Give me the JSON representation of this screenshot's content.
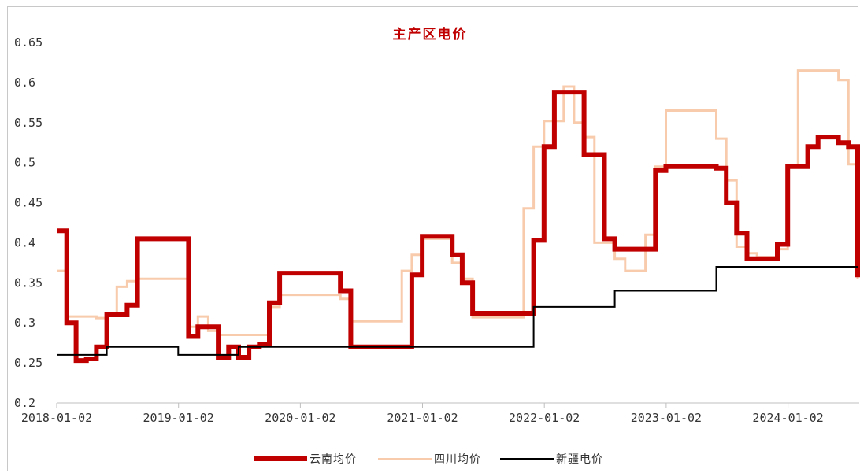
{
  "chart_data": {
    "type": "line",
    "title": "主产区电价",
    "xlabel": "",
    "ylabel": "",
    "ylim": [
      0.2,
      0.65
    ],
    "y_ticks": [
      "0.2",
      "0.25",
      "0.3",
      "0.35",
      "0.4",
      "0.45",
      "0.5",
      "0.55",
      "0.6",
      "0.65"
    ],
    "x_ticks": [
      "2018-01-02",
      "2019-01-02",
      "2020-01-02",
      "2021-01-02",
      "2022-01-02",
      "2023-01-02",
      "2024-01-02"
    ],
    "x_range": [
      "2018-01-02",
      "2024-07-01"
    ],
    "step": true,
    "grid": false,
    "legend_position": "bottom",
    "series": [
      {
        "name": "云南均价",
        "color": "#c00000",
        "points": [
          [
            "2018-01-02",
            0.415
          ],
          [
            "2018-02-01",
            0.3
          ],
          [
            "2018-03-01",
            0.253
          ],
          [
            "2018-04-01",
            0.255
          ],
          [
            "2018-05-01",
            0.27
          ],
          [
            "2018-06-01",
            0.31
          ],
          [
            "2018-08-01",
            0.322
          ],
          [
            "2018-09-01",
            0.405
          ],
          [
            "2019-02-01",
            0.283
          ],
          [
            "2019-03-01",
            0.295
          ],
          [
            "2019-05-01",
            0.257
          ],
          [
            "2019-06-01",
            0.27
          ],
          [
            "2019-07-01",
            0.257
          ],
          [
            "2019-08-01",
            0.27
          ],
          [
            "2019-09-01",
            0.273
          ],
          [
            "2019-10-01",
            0.325
          ],
          [
            "2019-11-01",
            0.362
          ],
          [
            "2020-05-01",
            0.34
          ],
          [
            "2020-06-01",
            0.27
          ],
          [
            "2020-12-01",
            0.36
          ],
          [
            "2021-01-01",
            0.408
          ],
          [
            "2021-04-01",
            0.385
          ],
          [
            "2021-05-01",
            0.35
          ],
          [
            "2021-06-01",
            0.312
          ],
          [
            "2021-12-01",
            0.403
          ],
          [
            "2022-01-01",
            0.52
          ],
          [
            "2022-02-01",
            0.588
          ],
          [
            "2022-05-01",
            0.51
          ],
          [
            "2022-07-01",
            0.405
          ],
          [
            "2022-08-01",
            0.392
          ],
          [
            "2022-12-01",
            0.49
          ],
          [
            "2023-01-01",
            0.495
          ],
          [
            "2023-06-01",
            0.493
          ],
          [
            "2023-07-01",
            0.45
          ],
          [
            "2023-08-01",
            0.412
          ],
          [
            "2023-09-01",
            0.38
          ],
          [
            "2023-12-01",
            0.398
          ],
          [
            "2024-01-01",
            0.495
          ],
          [
            "2024-03-01",
            0.52
          ],
          [
            "2024-04-01",
            0.532
          ],
          [
            "2024-06-01",
            0.525
          ],
          [
            "2024-07-01",
            0.52
          ],
          [
            "2024-08-01",
            0.465
          ],
          [
            "2024-09-01",
            0.357
          ],
          [
            "2024-09-30",
            0.357
          ]
        ]
      },
      {
        "name": "四川均价",
        "color": "#f8cbad",
        "points": [
          [
            "2018-01-02",
            0.365
          ],
          [
            "2018-02-01",
            0.308
          ],
          [
            "2018-05-01",
            0.306
          ],
          [
            "2018-06-01",
            0.31
          ],
          [
            "2018-07-01",
            0.345
          ],
          [
            "2018-08-01",
            0.352
          ],
          [
            "2018-09-01",
            0.355
          ],
          [
            "2019-02-01",
            0.295
          ],
          [
            "2019-03-01",
            0.308
          ],
          [
            "2019-04-01",
            0.29
          ],
          [
            "2019-05-01",
            0.285
          ],
          [
            "2019-10-01",
            0.32
          ],
          [
            "2019-11-01",
            0.335
          ],
          [
            "2020-05-01",
            0.33
          ],
          [
            "2020-06-01",
            0.302
          ],
          [
            "2020-11-01",
            0.365
          ],
          [
            "2020-12-01",
            0.385
          ],
          [
            "2021-01-01",
            0.405
          ],
          [
            "2021-04-01",
            0.375
          ],
          [
            "2021-05-01",
            0.355
          ],
          [
            "2021-06-01",
            0.307
          ],
          [
            "2021-11-01",
            0.443
          ],
          [
            "2021-12-01",
            0.52
          ],
          [
            "2022-01-01",
            0.552
          ],
          [
            "2022-03-01",
            0.595
          ],
          [
            "2022-04-01",
            0.55
          ],
          [
            "2022-05-01",
            0.532
          ],
          [
            "2022-06-01",
            0.4
          ],
          [
            "2022-08-01",
            0.38
          ],
          [
            "2022-09-01",
            0.365
          ],
          [
            "2022-11-01",
            0.41
          ],
          [
            "2022-12-01",
            0.495
          ],
          [
            "2023-01-01",
            0.565
          ],
          [
            "2023-06-01",
            0.53
          ],
          [
            "2023-07-01",
            0.478
          ],
          [
            "2023-08-01",
            0.395
          ],
          [
            "2023-09-01",
            0.387
          ],
          [
            "2023-10-01",
            0.382
          ],
          [
            "2023-12-01",
            0.392
          ],
          [
            "2024-01-01",
            0.495
          ],
          [
            "2024-02-01",
            0.615
          ],
          [
            "2024-06-01",
            0.603
          ],
          [
            "2024-07-01",
            0.498
          ],
          [
            "2024-08-01",
            0.395
          ],
          [
            "2024-09-01",
            0.355
          ],
          [
            "2024-09-30",
            0.355
          ]
        ]
      },
      {
        "name": "新疆电价",
        "color": "#000000",
        "points": [
          [
            "2018-01-02",
            0.26
          ],
          [
            "2018-06-01",
            0.27
          ],
          [
            "2019-01-01",
            0.26
          ],
          [
            "2019-07-01",
            0.27
          ],
          [
            "2021-12-01",
            0.32
          ],
          [
            "2022-08-01",
            0.34
          ],
          [
            "2023-06-01",
            0.37
          ],
          [
            "2024-09-30",
            0.37
          ]
        ]
      }
    ]
  }
}
